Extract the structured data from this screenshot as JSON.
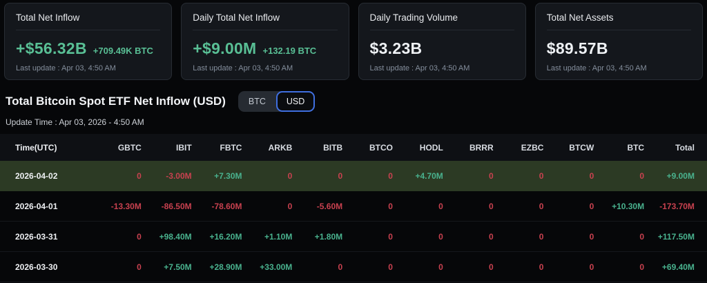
{
  "colors": {
    "positive": "#49b28e",
    "negative": "#c8414f",
    "card_accent": "#59bf95",
    "highlight_row_bg": "#2c3a24",
    "toggle_active_border": "#3f6fe0"
  },
  "cards": [
    {
      "title": "Total Net Inflow",
      "value": "+$56.32B",
      "sub": "+709.49K BTC",
      "last_update": "Last update : Apr 03, 4:50 AM"
    },
    {
      "title": "Daily Total Net Inflow",
      "value": "+$9.00M",
      "sub": "+132.19 BTC",
      "last_update": "Last update : Apr 03, 4:50 AM"
    },
    {
      "title": "Daily Trading Volume",
      "value": "$3.23B",
      "sub": "",
      "last_update": "Last update : Apr 03, 4:50 AM"
    },
    {
      "title": "Total Net Assets",
      "value": "$89.57B",
      "sub": "",
      "last_update": "Last update : Apr 03, 4:50 AM"
    }
  ],
  "section": {
    "title": "Total Bitcoin Spot ETF Net Inflow (USD)",
    "toggle": {
      "btc_label": "BTC",
      "usd_label": "USD",
      "active": "USD"
    },
    "update_time": "Update Time : Apr 03, 2026 - 4:50 AM"
  },
  "table": {
    "columns": [
      "Time(UTC)",
      "GBTC",
      "IBIT",
      "FBTC",
      "ARKB",
      "BITB",
      "BTCO",
      "HODL",
      "BRRR",
      "EZBC",
      "BTCW",
      "BTC",
      "Total"
    ],
    "rows": [
      {
        "date": "2026-04-02",
        "highlight": true,
        "cells": [
          {
            "v": "0",
            "t": "neg"
          },
          {
            "v": "-3.00M",
            "t": "neg"
          },
          {
            "v": "+7.30M",
            "t": "pos"
          },
          {
            "v": "0",
            "t": "neg"
          },
          {
            "v": "0",
            "t": "neg"
          },
          {
            "v": "0",
            "t": "neg"
          },
          {
            "v": "+4.70M",
            "t": "pos"
          },
          {
            "v": "0",
            "t": "neg"
          },
          {
            "v": "0",
            "t": "neg"
          },
          {
            "v": "0",
            "t": "neg"
          },
          {
            "v": "0",
            "t": "neg"
          },
          {
            "v": "+9.00M",
            "t": "pos"
          }
        ]
      },
      {
        "date": "2026-04-01",
        "highlight": false,
        "cells": [
          {
            "v": "-13.30M",
            "t": "neg"
          },
          {
            "v": "-86.50M",
            "t": "neg"
          },
          {
            "v": "-78.60M",
            "t": "neg"
          },
          {
            "v": "0",
            "t": "neg"
          },
          {
            "v": "-5.60M",
            "t": "neg"
          },
          {
            "v": "0",
            "t": "neg"
          },
          {
            "v": "0",
            "t": "neg"
          },
          {
            "v": "0",
            "t": "neg"
          },
          {
            "v": "0",
            "t": "neg"
          },
          {
            "v": "0",
            "t": "neg"
          },
          {
            "v": "+10.30M",
            "t": "pos"
          },
          {
            "v": "-173.70M",
            "t": "neg"
          }
        ]
      },
      {
        "date": "2026-03-31",
        "highlight": false,
        "cells": [
          {
            "v": "0",
            "t": "neg"
          },
          {
            "v": "+98.40M",
            "t": "pos"
          },
          {
            "v": "+16.20M",
            "t": "pos"
          },
          {
            "v": "+1.10M",
            "t": "pos"
          },
          {
            "v": "+1.80M",
            "t": "pos"
          },
          {
            "v": "0",
            "t": "neg"
          },
          {
            "v": "0",
            "t": "neg"
          },
          {
            "v": "0",
            "t": "neg"
          },
          {
            "v": "0",
            "t": "neg"
          },
          {
            "v": "0",
            "t": "neg"
          },
          {
            "v": "0",
            "t": "neg"
          },
          {
            "v": "+117.50M",
            "t": "pos"
          }
        ]
      },
      {
        "date": "2026-03-30",
        "highlight": false,
        "cells": [
          {
            "v": "0",
            "t": "neg"
          },
          {
            "v": "+7.50M",
            "t": "pos"
          },
          {
            "v": "+28.90M",
            "t": "pos"
          },
          {
            "v": "+33.00M",
            "t": "pos"
          },
          {
            "v": "0",
            "t": "neg"
          },
          {
            "v": "0",
            "t": "neg"
          },
          {
            "v": "0",
            "t": "neg"
          },
          {
            "v": "0",
            "t": "neg"
          },
          {
            "v": "0",
            "t": "neg"
          },
          {
            "v": "0",
            "t": "neg"
          },
          {
            "v": "0",
            "t": "neg"
          },
          {
            "v": "+69.40M",
            "t": "pos"
          }
        ]
      }
    ]
  }
}
